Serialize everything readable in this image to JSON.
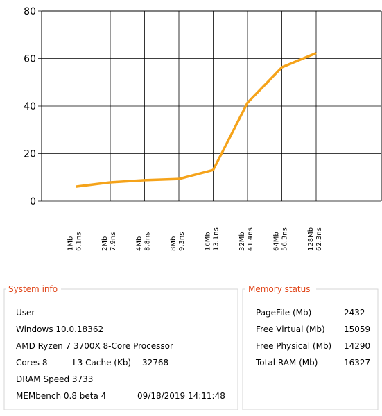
{
  "chart_data": {
    "type": "line",
    "categories": [
      "1Mb",
      "2Mb",
      "4Mb",
      "8Mb",
      "16Mb",
      "32Mb",
      "64Mb",
      "128Mb"
    ],
    "values": [
      6.1,
      7.9,
      8.8,
      9.3,
      13.1,
      41.4,
      56.3,
      62.3
    ],
    "value_labels": [
      "6.1ns",
      "7.9ns",
      "8.8ns",
      "9.3ns",
      "13.1ns",
      "41.4ns",
      "56.3ns",
      "62.3ns"
    ],
    "color": "#f5a31a",
    "ylim": [
      0,
      80
    ],
    "yticks": [
      0,
      20,
      40,
      60,
      80
    ],
    "grid": true
  },
  "system_info": {
    "title": "System info",
    "user": "User",
    "os": "Windows 10.0.18362",
    "cpu": "AMD Ryzen 7 3700X 8-Core Processor",
    "cores": "Cores 8",
    "l3_label": "L3 Cache (Kb)",
    "l3_value": 32768,
    "dram": "DRAM Speed 3733",
    "version": "MEMbench 0.8 beta 4",
    "timestamp": "09/18/2019 14:11:48"
  },
  "memory_status": {
    "title": "Memory status",
    "rows": [
      [
        "PageFile (Mb)",
        2432
      ],
      [
        "Free Virtual (Mb)",
        15059
      ],
      [
        "Free Physical (Mb)",
        14290
      ],
      [
        "Total RAM (Mb)",
        16327
      ]
    ]
  }
}
